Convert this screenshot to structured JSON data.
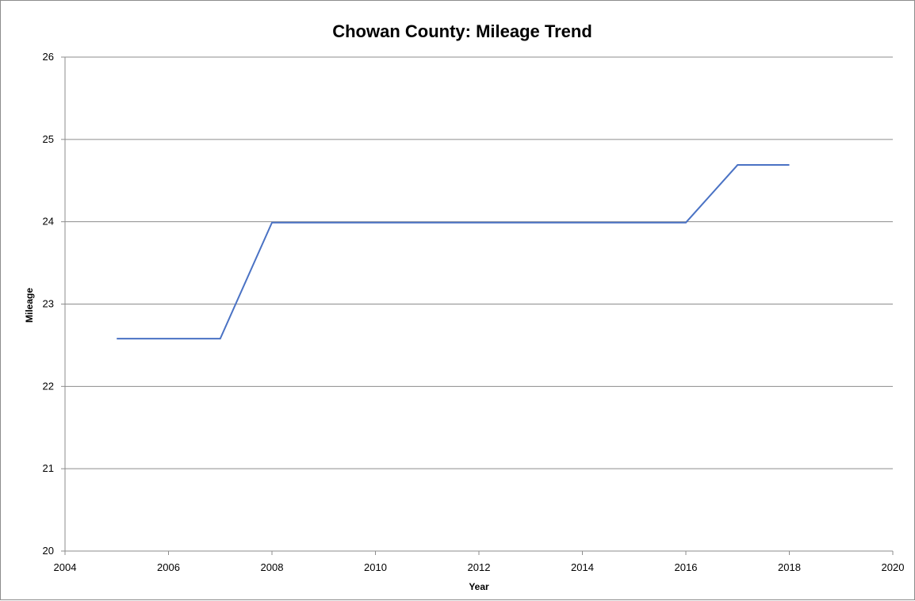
{
  "chart_data": {
    "type": "line",
    "title": "Chowan County: Mileage Trend",
    "xlabel": "Year",
    "ylabel": "Mileage",
    "xlim": [
      2004,
      2020
    ],
    "ylim": [
      20,
      26
    ],
    "x_ticks": [
      "2004",
      "2006",
      "2008",
      "2010",
      "2012",
      "2014",
      "2016",
      "2018",
      "2020"
    ],
    "y_ticks": [
      "20",
      "21",
      "22",
      "23",
      "24",
      "25",
      "26"
    ],
    "grid": "horizontal",
    "legend": "none",
    "series": [
      {
        "color": "#4a72c4",
        "points": [
          {
            "x": 2005,
            "y": 22.58
          },
          {
            "x": 2006,
            "y": 22.58
          },
          {
            "x": 2007,
            "y": 22.58
          },
          {
            "x": 2008,
            "y": 23.99
          },
          {
            "x": 2009,
            "y": 23.99
          },
          {
            "x": 2010,
            "y": 23.99
          },
          {
            "x": 2011,
            "y": 23.99
          },
          {
            "x": 2012,
            "y": 23.99
          },
          {
            "x": 2013,
            "y": 23.99
          },
          {
            "x": 2014,
            "y": 23.99
          },
          {
            "x": 2015,
            "y": 23.99
          },
          {
            "x": 2016,
            "y": 23.99
          },
          {
            "x": 2017,
            "y": 24.69
          },
          {
            "x": 2018,
            "y": 24.69
          }
        ]
      }
    ]
  }
}
